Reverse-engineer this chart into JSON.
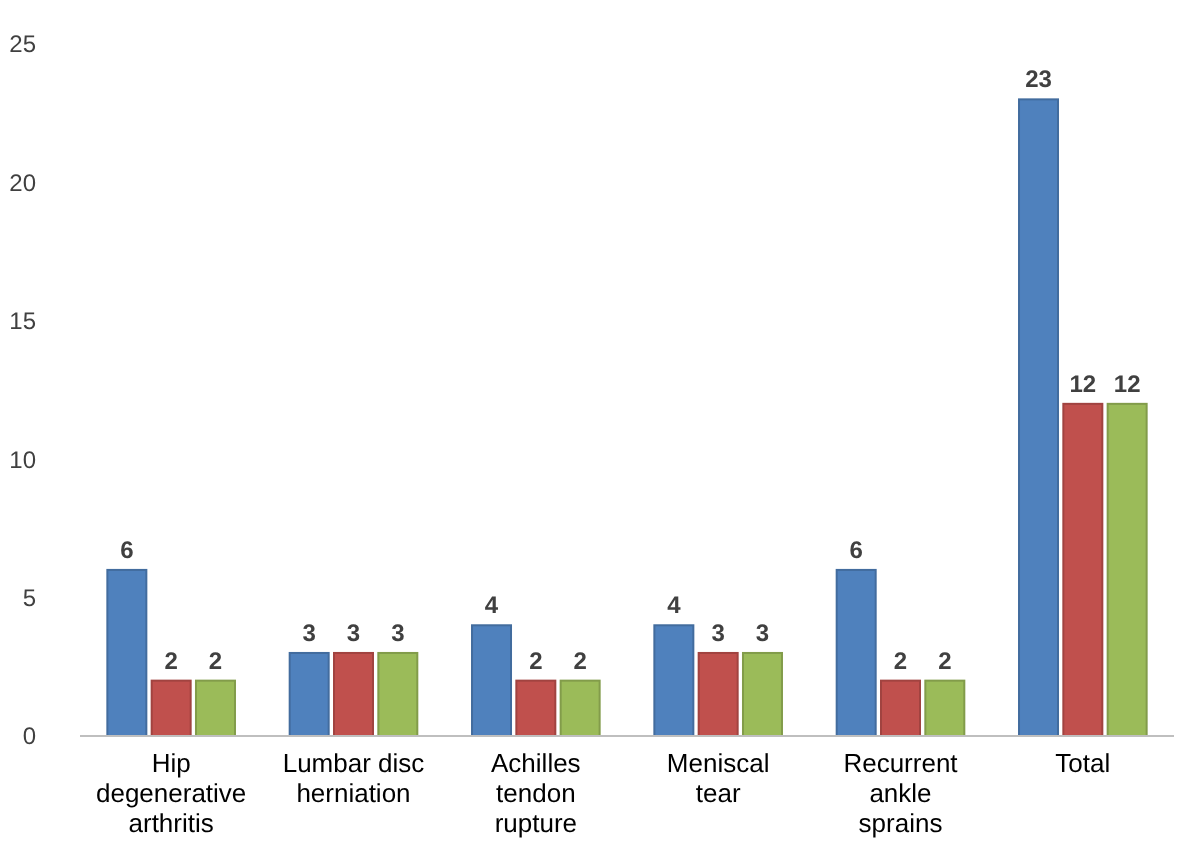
{
  "chart_data": {
    "type": "bar",
    "categories": [
      "Hip degenerative arthritis",
      "Lumbar disc herniation",
      "Achilles tendon rupture",
      "Meniscal tear",
      "Recurrent ankle sprains",
      "Total"
    ],
    "series": [
      {
        "color": "#4f81bd",
        "values": [
          6,
          3,
          4,
          4,
          6,
          23
        ]
      },
      {
        "color": "#c0504d",
        "values": [
          2,
          3,
          2,
          3,
          2,
          12
        ]
      },
      {
        "color": "#9bbb59",
        "values": [
          2,
          3,
          2,
          3,
          2,
          12
        ]
      }
    ],
    "ylim": [
      0,
      25
    ],
    "yticks": [
      0,
      5,
      10,
      15,
      20,
      25
    ],
    "grid": false,
    "data_labels": true
  }
}
